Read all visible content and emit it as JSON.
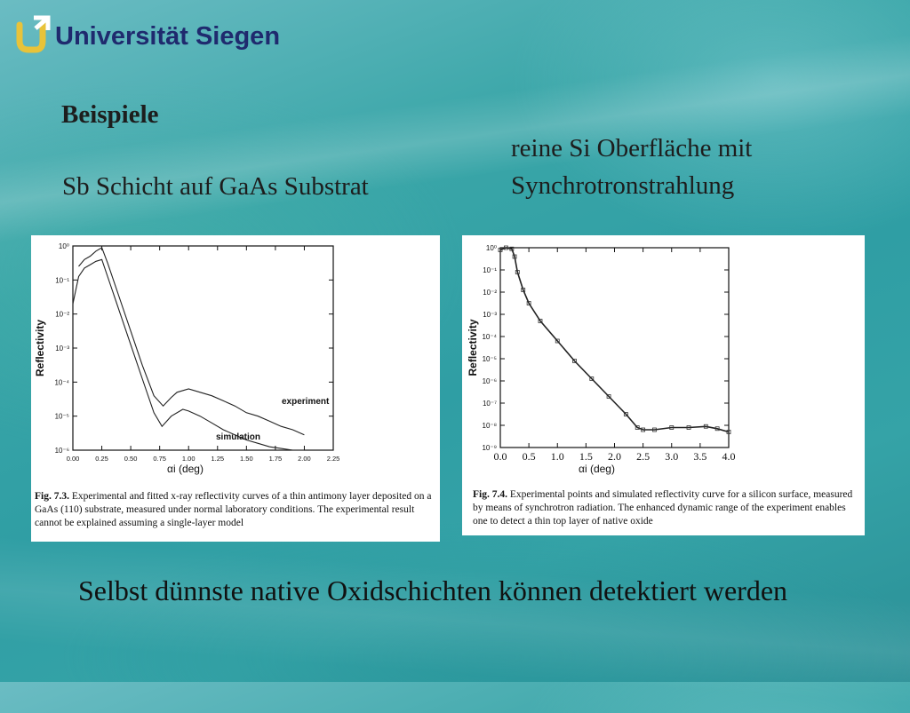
{
  "header": {
    "university": "Universität Siegen",
    "accent_color": "#1f2a6e",
    "logo_icon": "uni-siegen-logo"
  },
  "slide": {
    "heading": "Beispiele",
    "left_subtitle": "Sb Schicht auf GaAs Substrat",
    "right_subtitle": "reine Si Oberfläche mit Synchrotronstrahlung",
    "conclusion": "Selbst dünnste native Oxidschichten können detektiert werden"
  },
  "figures": [
    {
      "caption_label": "Fig. 7.3.",
      "caption_text": "Experimental and fitted x-ray reflectivity curves of a thin antimony layer deposited on a GaAs (110) substrate, measured under normal laboratory conditions. The experimental result cannot be explained assuming a single-layer model"
    },
    {
      "caption_label": "Fig. 7.4.",
      "caption_text": "Experimental points and simulated reflectivity curve for a silicon surface, measured by means of synchrotron radiation. The enhanced dynamic range of the experiment enables one to detect a thin top layer of native oxide"
    }
  ],
  "chart_data": [
    {
      "type": "line",
      "ylabel": "Reflectivity",
      "xlabel": "αi (deg)",
      "xlim": [
        0.0,
        2.25
      ],
      "ylim_log10": [
        -6,
        0
      ],
      "x_ticks": [
        "0.00",
        "0.25",
        "0.50",
        "0.75",
        "1.00",
        "1.25",
        "1.50",
        "1.75",
        "2.00",
        "2.25"
      ],
      "y_ticks": [
        "10⁰",
        "10⁻¹",
        "10⁻²",
        "10⁻³",
        "10⁻⁴",
        "10⁻⁵",
        "10⁻⁶"
      ],
      "series": [
        {
          "name": "experiment",
          "x": [
            0.05,
            0.1,
            0.15,
            0.2,
            0.25,
            0.3,
            0.4,
            0.5,
            0.6,
            0.7,
            0.78,
            0.85,
            0.9,
            1.0,
            1.1,
            1.2,
            1.3,
            1.4,
            1.5,
            1.6,
            1.7,
            1.8,
            1.9,
            2.0
          ],
          "log10_y": [
            -0.6,
            -0.4,
            -0.3,
            -0.15,
            -0.05,
            -0.5,
            -1.5,
            -2.5,
            -3.5,
            -4.4,
            -4.7,
            -4.45,
            -4.3,
            -4.2,
            -4.3,
            -4.4,
            -4.55,
            -4.7,
            -4.9,
            -5.0,
            -5.15,
            -5.3,
            -5.4,
            -5.55
          ]
        },
        {
          "name": "simulation",
          "x": [
            0.0,
            0.05,
            0.1,
            0.15,
            0.2,
            0.25,
            0.3,
            0.4,
            0.5,
            0.6,
            0.7,
            0.77,
            0.85,
            0.95,
            1.0,
            1.1,
            1.2,
            1.3,
            1.4,
            1.5,
            1.6,
            1.7,
            1.8,
            1.9,
            2.0
          ],
          "log10_y": [
            -1.7,
            -0.9,
            -0.65,
            -0.55,
            -0.45,
            -0.4,
            -0.9,
            -1.9,
            -2.9,
            -3.9,
            -4.9,
            -5.3,
            -5.0,
            -4.8,
            -4.85,
            -5.0,
            -5.2,
            -5.4,
            -5.55,
            -5.7,
            -5.8,
            -5.9,
            -5.95,
            -6.0,
            -6.0
          ]
        }
      ]
    },
    {
      "type": "line",
      "ylabel": "Reflectivity",
      "xlabel": "αi (deg)",
      "xlim": [
        0.0,
        4.0
      ],
      "ylim_log10": [
        -9,
        0
      ],
      "x_ticks": [
        "0.0",
        "0.5",
        "1.0",
        "1.5",
        "2.0",
        "2.5",
        "3.0",
        "3.5",
        "4.0"
      ],
      "y_ticks": [
        "10⁰",
        "10⁻¹",
        "10⁻²",
        "10⁻³",
        "10⁻⁴",
        "10⁻⁵",
        "10⁻⁶",
        "10⁻⁷",
        "10⁻⁸",
        "10⁻⁹"
      ],
      "series": [
        {
          "name": "",
          "x": [
            0.0,
            0.1,
            0.2,
            0.25,
            0.3,
            0.4,
            0.5,
            0.7,
            1.0,
            1.3,
            1.6,
            1.9,
            2.2,
            2.4,
            2.5,
            2.7,
            3.0,
            3.3,
            3.6,
            3.8,
            4.0
          ],
          "log10_y": [
            -0.1,
            0.0,
            -0.05,
            -0.4,
            -1.1,
            -1.9,
            -2.5,
            -3.3,
            -4.2,
            -5.1,
            -5.9,
            -6.7,
            -7.5,
            -8.1,
            -8.2,
            -8.2,
            -8.1,
            -8.1,
            -8.05,
            -8.15,
            -8.3
          ]
        }
      ]
    }
  ]
}
